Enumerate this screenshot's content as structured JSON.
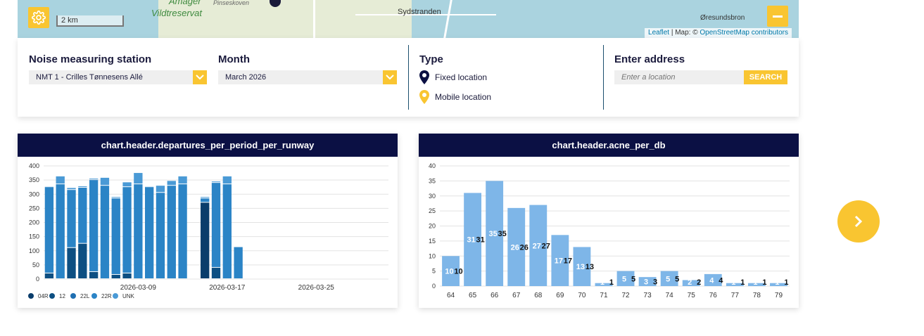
{
  "map": {
    "labels": {
      "amager": "Amager",
      "vildtreservat": "Vildtreservat",
      "pinseskoven": "Pinseskoven",
      "sydstranden": "Sydstranden",
      "oresundsbron": "Øresundsbron"
    },
    "scale_label": "2 km",
    "attribution": {
      "leaflet": "Leaflet",
      "map_prefix": " | Map: © ",
      "osm": "OpenStreetMap contributors"
    },
    "icons": {
      "settings": "gear-icon",
      "zoom_out": "minus-icon"
    }
  },
  "filters": {
    "station": {
      "label": "Noise measuring station",
      "value": "NMT 1 - Crilles Tønnesens Allé"
    },
    "month": {
      "label": "Month",
      "value": "March 2026"
    },
    "type": {
      "label": "Type",
      "fixed": "Fixed location",
      "mobile": "Mobile location"
    },
    "address": {
      "label": "Enter address",
      "placeholder": "Enter a location",
      "button": "SEARCH"
    }
  },
  "colors": {
    "accent": "#f9c531",
    "header": "#0b1044",
    "bar_light": "#7eb6e8"
  },
  "chart_data": [
    {
      "type": "bar",
      "stacked": true,
      "title": "chart.header.departures_per_period_per_runway",
      "ylim": [
        0,
        400
      ],
      "yticks": [
        0,
        50,
        100,
        150,
        200,
        250,
        300,
        350,
        400
      ],
      "categories": [
        "2026-03-01",
        "2026-03-02",
        "2026-03-03",
        "2026-03-04",
        "2026-03-05",
        "2026-03-06",
        "2026-03-07",
        "2026-03-08",
        "2026-03-09",
        "2026-03-10",
        "2026-03-11",
        "2026-03-12",
        "2026-03-13",
        "2026-03-14",
        "2026-03-15",
        "2026-03-16",
        "2026-03-17",
        "2026-03-18",
        "2026-03-19",
        "2026-03-20",
        "2026-03-21",
        "2026-03-22",
        "2026-03-23",
        "2026-03-24",
        "2026-03-25",
        "2026-03-26",
        "2026-03-27",
        "2026-03-28",
        "2026-03-29",
        "2026-03-30",
        "2026-03-31"
      ],
      "xtick_labels": [
        "2026-03-09",
        "2026-03-17",
        "2026-03-25"
      ],
      "legend_position": "bottom-left",
      "series": [
        {
          "name": "04R",
          "color": "#0a3d6b",
          "values": [
            0,
            0,
            0,
            0,
            0,
            0,
            0,
            0,
            0,
            0,
            0,
            0,
            0,
            0,
            270,
            0,
            0,
            0,
            0,
            0,
            0,
            0,
            0,
            0,
            0,
            0,
            0,
            0,
            0,
            0,
            0
          ]
        },
        {
          "name": "12",
          "color": "#0d4f82",
          "values": [
            20,
            0,
            110,
            125,
            25,
            0,
            15,
            20,
            0,
            0,
            0,
            0,
            0,
            0,
            0,
            40,
            0,
            0,
            0,
            0,
            0,
            0,
            0,
            0,
            0,
            0,
            0,
            0,
            0,
            0,
            0
          ]
        },
        {
          "name": "22L",
          "color": "#1f6fb2",
          "values": [
            0,
            0,
            0,
            0,
            0,
            0,
            0,
            0,
            0,
            0,
            0,
            0,
            0,
            0,
            0,
            0,
            0,
            0,
            0,
            0,
            0,
            0,
            0,
            0,
            0,
            0,
            0,
            0,
            0,
            0,
            0
          ]
        },
        {
          "name": "22R",
          "color": "#2b84c6",
          "values": [
            305,
            335,
            205,
            198,
            325,
            330,
            270,
            305,
            335,
            325,
            305,
            330,
            335,
            0,
            15,
            300,
            335,
            113,
            0,
            0,
            0,
            0,
            0,
            0,
            0,
            0,
            0,
            0,
            0,
            0,
            0
          ]
        },
        {
          "name": "UNK",
          "color": "#4a9ad6",
          "values": [
            3,
            28,
            7,
            5,
            5,
            28,
            5,
            17,
            40,
            3,
            25,
            17,
            28,
            0,
            5,
            5,
            28,
            2,
            0,
            0,
            0,
            0,
            0,
            0,
            0,
            0,
            0,
            0,
            0,
            0,
            0
          ]
        }
      ]
    },
    {
      "type": "bar",
      "title": "chart.header.acne_per_db",
      "ylim": [
        0,
        40
      ],
      "yticks": [
        0,
        5,
        10,
        15,
        20,
        25,
        30,
        35,
        40
      ],
      "categories": [
        "64",
        "65",
        "66",
        "67",
        "68",
        "69",
        "70",
        "71",
        "72",
        "73",
        "74",
        "75",
        "76",
        "77",
        "78",
        "79"
      ],
      "values": [
        10,
        31,
        35,
        26,
        27,
        17,
        13,
        1,
        5,
        3,
        5,
        2,
        4,
        1,
        1,
        1
      ]
    }
  ]
}
